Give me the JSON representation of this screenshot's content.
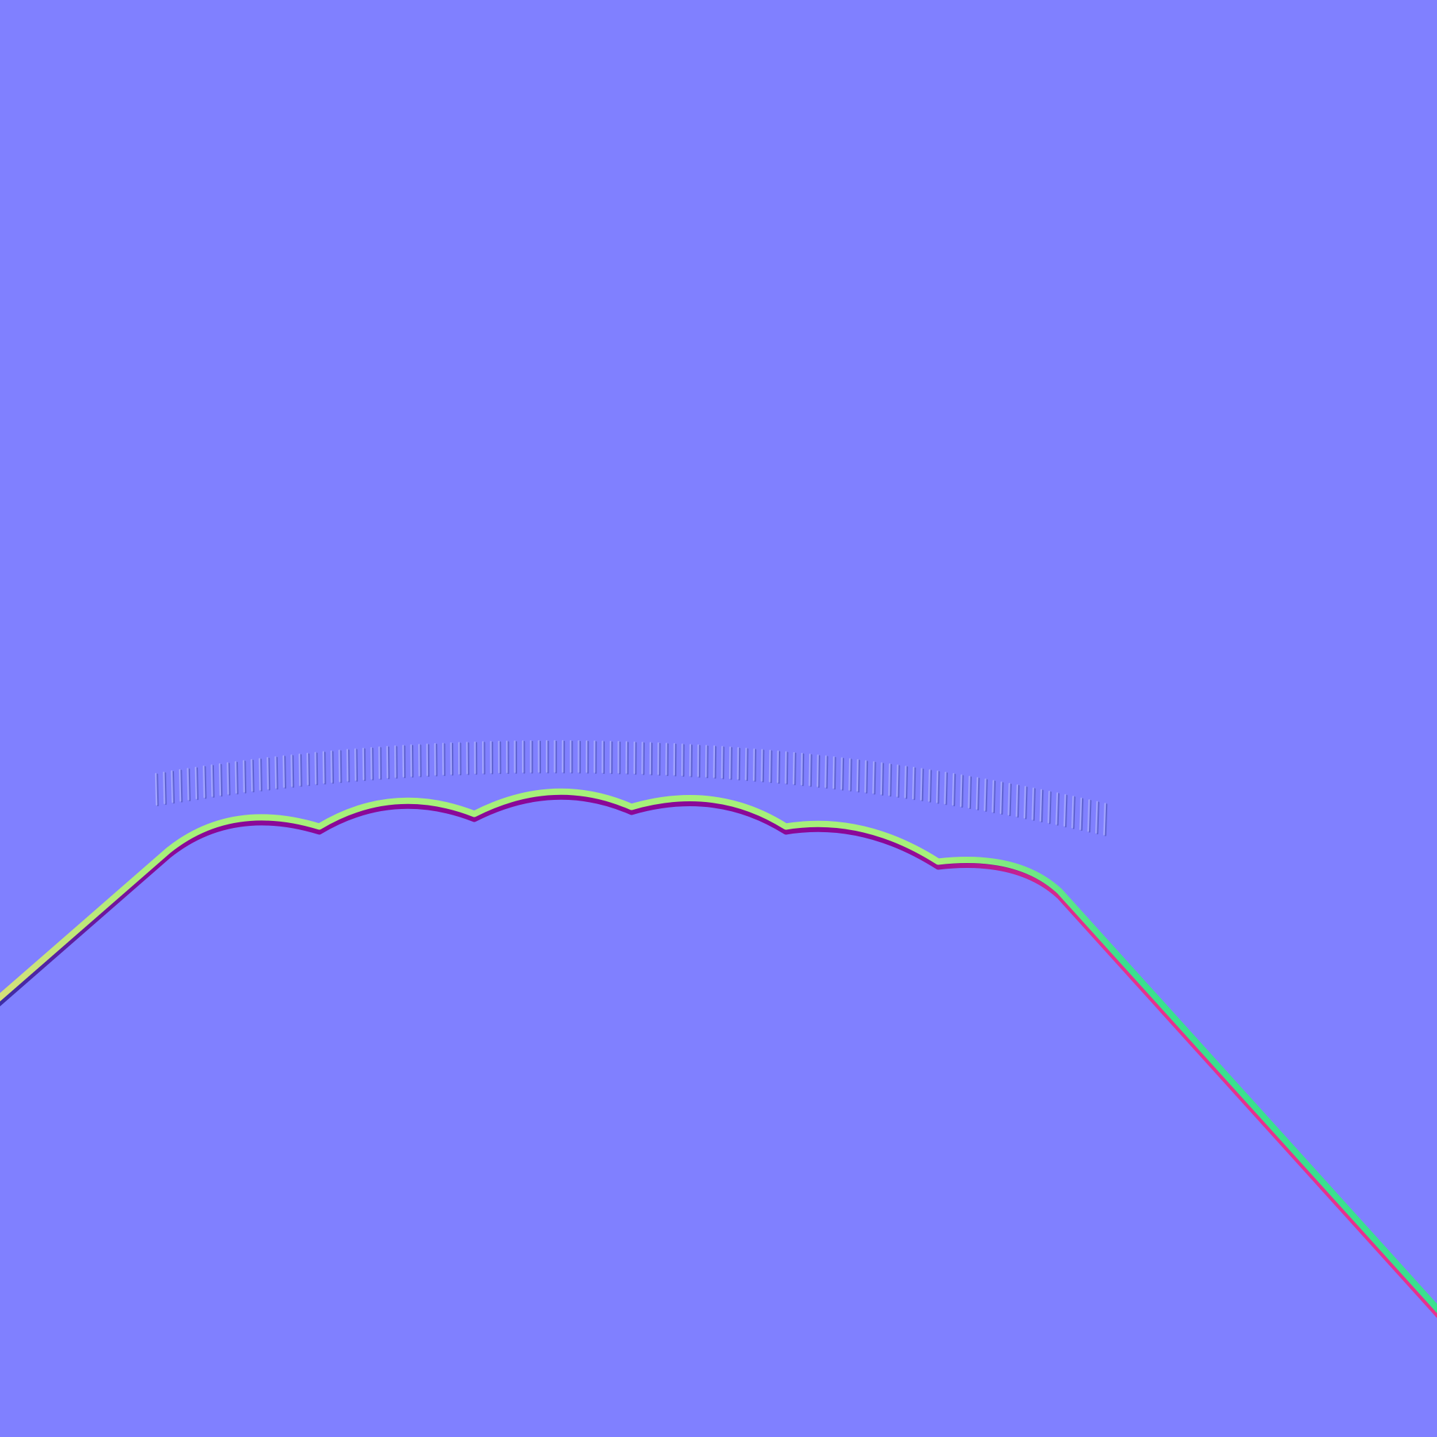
{
  "texture": {
    "kind": "normal-map",
    "background_color": "#8080ff",
    "colors": {
      "face_up_left": "#d6e07a",
      "face_up": "#a6f07a",
      "face_up_right": "#3ae08e",
      "face_down_left": "#3a2fa8",
      "face_down": "#8a0898",
      "face_down_right": "#e8308e",
      "rib_highlight": "#a2a4ff",
      "rib_shadow": "#5f63d0"
    },
    "rib_count": 120,
    "scallop_count": 6
  }
}
